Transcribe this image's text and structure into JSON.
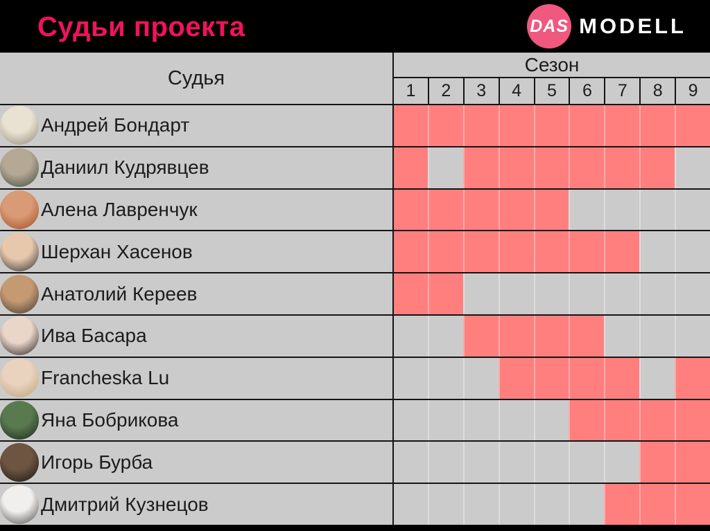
{
  "header": {
    "title": "Судьи проекта",
    "logo": {
      "circle_text": "DAS",
      "wordmark": "MODELL"
    }
  },
  "table": {
    "judge_column_header": "Судья",
    "season_header": "Сезон",
    "season_numbers": [
      "1",
      "2",
      "3",
      "4",
      "5",
      "6",
      "7",
      "8",
      "9"
    ],
    "judges": [
      {
        "name": "Андрей Бондарт",
        "seasons": [
          [
            1,
            9
          ]
        ],
        "avatar_colors": [
          "#e9e2d2",
          "#8f8676"
        ]
      },
      {
        "name": "Даниил Кудрявцев",
        "seasons": [
          [
            1,
            1
          ],
          [
            3,
            8
          ]
        ],
        "avatar_colors": [
          "#b5a894",
          "#3f4a40"
        ]
      },
      {
        "name": "Алена Лавренчук",
        "seasons": [
          [
            1,
            5
          ]
        ],
        "avatar_colors": [
          "#d99a76",
          "#a14a20"
        ]
      },
      {
        "name": "Шерхан Хасенов",
        "seasons": [
          [
            1,
            7
          ]
        ],
        "avatar_colors": [
          "#e8c8ac",
          "#2a2a2e"
        ]
      },
      {
        "name": "Анатолий Кереев",
        "seasons": [
          [
            1,
            2
          ]
        ],
        "avatar_colors": [
          "#c59a72",
          "#3c3633"
        ]
      },
      {
        "name": "Ива Басара",
        "seasons": [
          [
            3,
            6
          ]
        ],
        "avatar_colors": [
          "#ead6c8",
          "#221c1e"
        ]
      },
      {
        "name": "Francheska Lu",
        "seasons": [
          [
            4,
            7
          ],
          [
            9,
            9
          ]
        ],
        "avatar_colors": [
          "#e9d2be",
          "#b9a178"
        ]
      },
      {
        "name": "Яна Бобрикова",
        "seasons": [
          [
            6,
            9
          ]
        ],
        "avatar_colors": [
          "#59794f",
          "#17241a"
        ]
      },
      {
        "name": "Игорь Бурба",
        "seasons": [
          [
            8,
            9
          ]
        ],
        "avatar_colors": [
          "#6e5542",
          "#171210"
        ]
      },
      {
        "name": "Дмитрий Кузнецов",
        "seasons": [
          [
            7,
            9
          ]
        ],
        "avatar_colors": [
          "#f0efed",
          "#4a4644"
        ]
      }
    ]
  },
  "chart_data": {
    "type": "heatmap",
    "title": "Судьи проекта",
    "x_categories": [
      "1",
      "2",
      "3",
      "4",
      "5",
      "6",
      "7",
      "8",
      "9"
    ],
    "xlabel": "Сезон",
    "y_categories": [
      "Андрей Бондарт",
      "Даниил Кудрявцев",
      "Алена Лавренчук",
      "Шерхан Хасенов",
      "Анатолий Кереев",
      "Ива Басара",
      "Francheska Lu",
      "Яна Бобрикова",
      "Игорь Бурба",
      "Дмитрий Кузнецов"
    ],
    "values": [
      [
        1,
        1,
        1,
        1,
        1,
        1,
        1,
        1,
        1
      ],
      [
        1,
        0,
        1,
        1,
        1,
        1,
        1,
        1,
        0
      ],
      [
        1,
        1,
        1,
        1,
        1,
        0,
        0,
        0,
        0
      ],
      [
        1,
        1,
        1,
        1,
        1,
        1,
        1,
        0,
        0
      ],
      [
        1,
        1,
        0,
        0,
        0,
        0,
        0,
        0,
        0
      ],
      [
        0,
        0,
        1,
        1,
        1,
        1,
        0,
        0,
        0
      ],
      [
        0,
        0,
        0,
        1,
        1,
        1,
        1,
        0,
        1
      ],
      [
        0,
        0,
        0,
        0,
        0,
        1,
        1,
        1,
        1
      ],
      [
        0,
        0,
        0,
        0,
        0,
        0,
        0,
        1,
        1
      ],
      [
        0,
        0,
        0,
        0,
        0,
        0,
        1,
        1,
        1
      ]
    ],
    "legend": "1 = судья участвовал в сезоне (розовая ячейка), 0 = не участвовал (серая ячейка)"
  },
  "colors": {
    "active_cell_pink": "#ff7f7f",
    "inactive_cell_gray": "#cbcbcb",
    "title_pink": "#f2125f",
    "logo_circle_pink": "#f0587e",
    "background_black": "#000000",
    "grid_line_black": "#141414"
  }
}
